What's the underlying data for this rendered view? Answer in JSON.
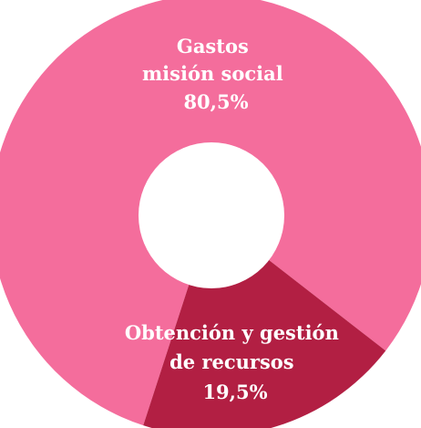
{
  "chart_data": {
    "type": "pie",
    "donut": true,
    "labels": [
      "Gastos misión social",
      "Obtención y gestión de recursos"
    ],
    "values": [
      80.5,
      19.5
    ],
    "colors": [
      "#f46d9c",
      "#b21f43"
    ],
    "value_labels": [
      "80,5%",
      "19,5%"
    ],
    "label_lines": [
      [
        "Gastos",
        "misión social",
        "80,5%"
      ],
      [
        "Obtención y gestión",
        "de recursos",
        "19,5%"
      ]
    ],
    "title": "",
    "legend": "none"
  }
}
